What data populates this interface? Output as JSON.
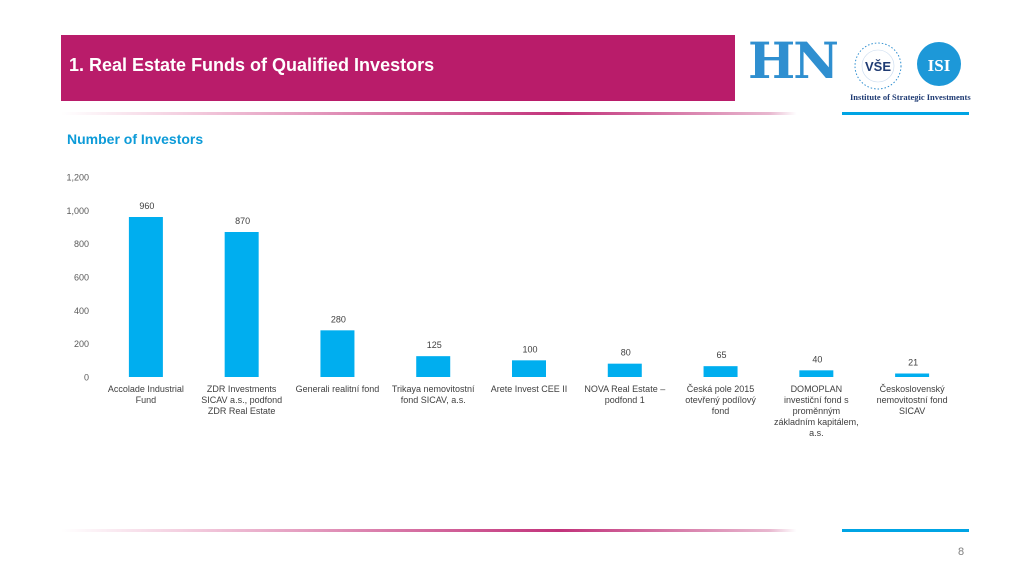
{
  "header": {
    "title": "1. Real Estate Funds of Qualified Investors",
    "logo_hn": "HN",
    "logo_vse": "VŠE",
    "logo_isi_monogram": "ISI",
    "institute": "Institute of Strategic Investments"
  },
  "colors": {
    "title_band": "#b91c6a",
    "bar": "#00aeef",
    "chart_title": "#0d9bd8",
    "logo_blue": "#2f8fd0",
    "institute_text": "#1f3b73"
  },
  "chart_data": {
    "type": "bar",
    "title": "Number of Investors",
    "categories": [
      [
        "Accolade Industrial",
        "Fund"
      ],
      [
        "ZDR Investments",
        "SICAV a.s., podfond",
        "ZDR Real Estate"
      ],
      [
        "Generali realitní fond"
      ],
      [
        "Trikaya nemovitostní",
        "fond SICAV, a.s."
      ],
      [
        "Arete Invest CEE II"
      ],
      [
        "NOVA Real Estate –",
        "podfond 1"
      ],
      [
        "Česká pole 2015",
        "otevřený podílový",
        "fond"
      ],
      [
        "DOMOPLAN",
        "investiční fond s",
        "proměnným",
        "základním kapitálem,",
        "a.s."
      ],
      [
        "Československý",
        "nemovitostní fond",
        "SICAV"
      ]
    ],
    "values": [
      960,
      870,
      280,
      125,
      100,
      80,
      65,
      40,
      21
    ],
    "data_labels": [
      "960",
      "870",
      "280",
      "125",
      "100",
      "80",
      "65",
      "40",
      "21"
    ],
    "ylim": [
      0,
      1200
    ],
    "yticks": [
      "0",
      "200",
      "400",
      "600",
      "800",
      "1,000",
      "1,200"
    ],
    "grid": false,
    "legend": "none"
  },
  "footer": {
    "page_number": "8"
  }
}
